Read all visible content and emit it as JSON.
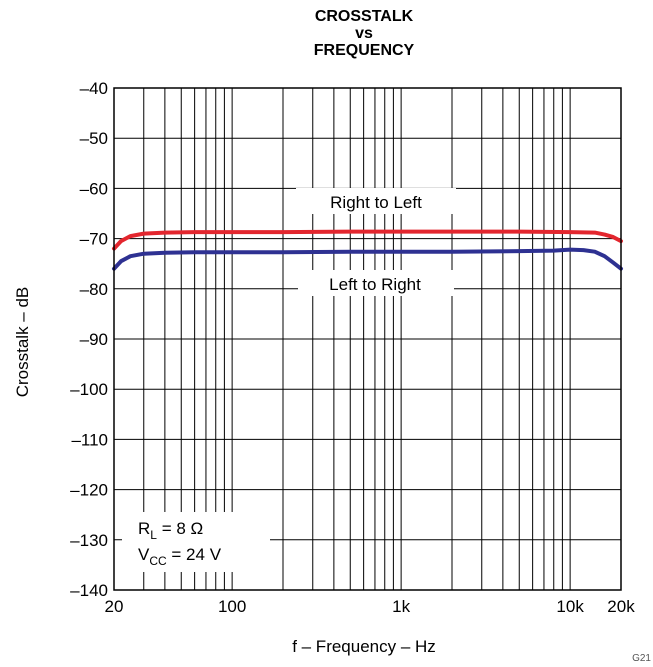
{
  "chart_data": {
    "type": "line",
    "title": [
      "CROSSTALK",
      "vs",
      "FREQUENCY"
    ],
    "xlabel": "f – Frequency – Hz",
    "ylabel": "Crosstalk – dB",
    "x_scale": "log",
    "xlim": [
      20,
      20000
    ],
    "ylim": [
      -140,
      -40
    ],
    "x_ticks": [
      20,
      100,
      1000,
      10000,
      20000
    ],
    "x_tick_labels": [
      "20",
      "100",
      "1k",
      "10k",
      "20k"
    ],
    "y_ticks": [
      -140,
      -130,
      -120,
      -110,
      -100,
      -90,
      -80,
      -70,
      -60,
      -50,
      -40
    ],
    "y_tick_labels": [
      "–140",
      "–130",
      "–120",
      "–110",
      "–100",
      "–90",
      "–80",
      "–70",
      "–60",
      "–50",
      "–40"
    ],
    "grid": true,
    "legend": "none",
    "series": [
      {
        "name": "Right to Left",
        "color": "#e3262e",
        "x": [
          20,
          22,
          25,
          30,
          40,
          60,
          100,
          200,
          500,
          1000,
          2000,
          5000,
          10000,
          14000,
          16000,
          18000,
          20000
        ],
        "y": [
          -72,
          -70.5,
          -69.5,
          -69,
          -68.8,
          -68.7,
          -68.7,
          -68.7,
          -68.6,
          -68.6,
          -68.6,
          -68.6,
          -68.7,
          -68.8,
          -69.2,
          -69.7,
          -70.5
        ]
      },
      {
        "name": "Left to Right",
        "color": "#2e3192",
        "x": [
          20,
          22,
          25,
          30,
          40,
          60,
          100,
          200,
          500,
          1000,
          2000,
          5000,
          8000,
          10000,
          12000,
          14000,
          16000,
          18000,
          20000
        ],
        "y": [
          -76,
          -74.5,
          -73.5,
          -73,
          -72.8,
          -72.7,
          -72.7,
          -72.7,
          -72.6,
          -72.6,
          -72.6,
          -72.5,
          -72.4,
          -72.2,
          -72.3,
          -72.6,
          -73.5,
          -74.8,
          -76
        ]
      }
    ],
    "annotations": {
      "series_labels": [
        "Right to Left",
        "Left to Right"
      ],
      "rl_text": "R",
      "rl_sub": "L",
      "rl_value": " = 8 Ω",
      "vcc_text": "V",
      "vcc_sub": "CC",
      "vcc_value": " = 24 V"
    },
    "figure_id": "G21"
  }
}
